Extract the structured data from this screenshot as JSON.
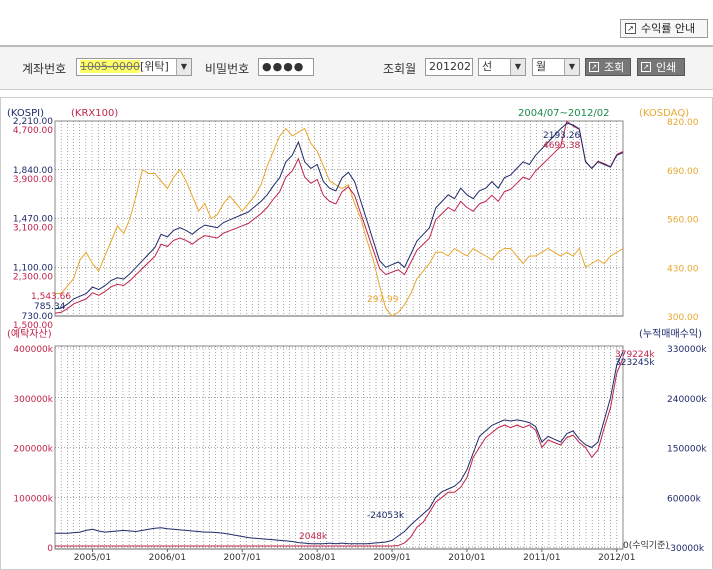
{
  "header": {
    "guide_button": "수익률 안내"
  },
  "query": {
    "account_label": "계좌번호",
    "account_value": "1005-0000",
    "account_type": "[위탁]",
    "password_label": "비밀번호",
    "password_value": "●●●●",
    "period_label": "조회월",
    "period_value": "201202",
    "option1": "선",
    "option2": "월",
    "search_button": "조회",
    "print_button": "인쇄"
  },
  "chart_data": [
    {
      "type": "line",
      "period_label": "2004/07~2012/02",
      "legend": {
        "kospi": "(KOSPI)",
        "krx100": "(KRX100)",
        "kosdaq": "(KOSDAQ)"
      },
      "colors": {
        "kospi": "#1f2a6b",
        "krx100": "#c0254a",
        "kosdaq": "#e8a830",
        "period": "#1a8a4a"
      },
      "kospi_axis": {
        "ticks": [
          "2,210.00",
          "1,840.00",
          "1,470.00",
          "1,100.00",
          "730.00"
        ],
        "range": [
          730,
          2210
        ]
      },
      "krx100_axis": {
        "ticks": [
          "4,700.00",
          "3,900.00",
          "3,100.00",
          "2,300.00",
          "1,500.00"
        ],
        "range": [
          1500,
          4700
        ]
      },
      "kosdaq_axis": {
        "ticks": [
          "820.00",
          "690.00",
          "560.00",
          "430.00",
          "300.00"
        ],
        "range": [
          300,
          820
        ]
      },
      "annotations": {
        "kospi_start": "785.34",
        "krx100_start": "1,543.66",
        "kospi_end": "2193.26",
        "krx100_end": "4695.38",
        "kosdaq_low": "297.99"
      },
      "kospi": [
        785,
        790,
        820,
        860,
        880,
        900,
        950,
        930,
        960,
        1000,
        1020,
        1010,
        1050,
        1100,
        1150,
        1200,
        1250,
        1350,
        1330,
        1380,
        1400,
        1380,
        1350,
        1390,
        1420,
        1410,
        1400,
        1440,
        1460,
        1480,
        1500,
        1520,
        1560,
        1600,
        1650,
        1720,
        1780,
        1900,
        1950,
        2050,
        1900,
        1850,
        1880,
        1750,
        1700,
        1680,
        1780,
        1820,
        1750,
        1600,
        1450,
        1300,
        1150,
        1100,
        1120,
        1140,
        1100,
        1200,
        1300,
        1350,
        1400,
        1550,
        1600,
        1650,
        1620,
        1700,
        1650,
        1620,
        1680,
        1700,
        1750,
        1700,
        1780,
        1800,
        1850,
        1900,
        1880,
        1950,
        2000,
        2050,
        2100,
        2150,
        2193,
        2180,
        2150,
        1900,
        1850,
        1900,
        1880,
        1860,
        1950,
        1970
      ],
      "krx100": [
        1544,
        1560,
        1620,
        1700,
        1740,
        1780,
        1880,
        1840,
        1900,
        1980,
        2020,
        2000,
        2080,
        2180,
        2280,
        2380,
        2480,
        2680,
        2640,
        2740,
        2780,
        2740,
        2680,
        2760,
        2820,
        2800,
        2780,
        2860,
        2900,
        2940,
        2980,
        3020,
        3100,
        3180,
        3280,
        3420,
        3540,
        3780,
        3880,
        4080,
        3780,
        3680,
        3740,
        3480,
        3380,
        3340,
        3540,
        3620,
        3480,
        3180,
        2880,
        2580,
        2280,
        2180,
        2220,
        2260,
        2180,
        2380,
        2580,
        2680,
        2780,
        3080,
        3180,
        3280,
        3220,
        3380,
        3280,
        3220,
        3340,
        3380,
        3480,
        3380,
        3540,
        3580,
        3680,
        3780,
        3740,
        3880,
        3980,
        4080,
        4180,
        4280,
        4695,
        4620,
        4560,
        4040,
        3920,
        4040,
        4000,
        3950,
        4150,
        4200
      ],
      "kosdaq": [
        360,
        360,
        380,
        400,
        450,
        470,
        440,
        420,
        460,
        500,
        540,
        520,
        560,
        620,
        690,
        680,
        680,
        660,
        640,
        670,
        690,
        660,
        620,
        580,
        600,
        560,
        570,
        600,
        620,
        600,
        580,
        600,
        620,
        650,
        700,
        740,
        780,
        800,
        780,
        790,
        800,
        760,
        740,
        700,
        660,
        650,
        640,
        650,
        600,
        560,
        500,
        450,
        380,
        320,
        298,
        310,
        330,
        360,
        400,
        420,
        440,
        470,
        470,
        460,
        480,
        470,
        460,
        480,
        470,
        460,
        450,
        470,
        480,
        480,
        460,
        440,
        460,
        460,
        470,
        480,
        470,
        460,
        470,
        460,
        480,
        430,
        440,
        450,
        440,
        460,
        470,
        480
      ]
    },
    {
      "type": "line",
      "legend": {
        "assets": "(예탁자산)",
        "profit": "(누적매매수익)"
      },
      "colors": {
        "assets": "#c0254a",
        "profit": "#1f2a6b"
      },
      "left_axis": {
        "ticks": [
          "400000k",
          "300000k",
          "200000k",
          "100000k",
          "0"
        ],
        "range": [
          0,
          400000
        ]
      },
      "right_axis": {
        "ticks": [
          "330000k",
          "240000k",
          "150000k",
          "60000k",
          "-30000k"
        ],
        "range": [
          -30000,
          330000
        ]
      },
      "categories": [
        "2005/01",
        "2006/01",
        "2007/01",
        "2008/01",
        "2009/01",
        "2010/01",
        "2011/01",
        "2012/01"
      ],
      "annotations": {
        "assets_end": "379224k",
        "profit_end": "323245k",
        "assets_mid": "2048k",
        "profit_mid": "-24053k",
        "zero_label": "0(수익기준)"
      },
      "assets": [
        2000,
        2000,
        2000,
        2000,
        2000,
        2000,
        2000,
        2000,
        2000,
        2000,
        2000,
        2000,
        2000,
        2000,
        2000,
        2000,
        2000,
        2000,
        2000,
        2000,
        2000,
        2000,
        2000,
        2000,
        2000,
        2000,
        2000,
        2000,
        2000,
        2000,
        2000,
        2000,
        2000,
        2000,
        2000,
        2000,
        2000,
        2000,
        2000,
        2000,
        2000,
        2000,
        2000,
        2000,
        2000,
        2000,
        2000,
        2048,
        2000,
        2000,
        2000,
        2000,
        2000,
        2000,
        2000,
        3000,
        8000,
        20000,
        40000,
        50000,
        70000,
        90000,
        100000,
        110000,
        110000,
        120000,
        140000,
        180000,
        200000,
        220000,
        230000,
        240000,
        245000,
        240000,
        245000,
        240000,
        245000,
        235000,
        200000,
        215000,
        210000,
        205000,
        220000,
        225000,
        210000,
        200000,
        180000,
        195000,
        240000,
        280000,
        350000,
        379224
      ],
      "profit": [
        -5000,
        -5000,
        -5000,
        -4000,
        -3000,
        0,
        2000,
        -1000,
        -3000,
        -2000,
        -1000,
        0,
        -1000,
        -2000,
        0,
        2000,
        4000,
        5000,
        3000,
        2000,
        1000,
        0,
        -1000,
        -2000,
        -3000,
        -3000,
        -4000,
        -5000,
        -7000,
        -9000,
        -11000,
        -13000,
        -14000,
        -15000,
        -16000,
        -17000,
        -18000,
        -19000,
        -20000,
        -22000,
        -23000,
        -24000,
        -24053,
        -24000,
        -23000,
        -24000,
        -23000,
        -24000,
        -24000,
        -24000,
        -24000,
        -23000,
        -22000,
        -21000,
        -18000,
        -10000,
        -2000,
        10000,
        20000,
        30000,
        40000,
        60000,
        70000,
        75000,
        80000,
        90000,
        110000,
        140000,
        170000,
        180000,
        190000,
        195000,
        200000,
        198000,
        200000,
        198000,
        195000,
        188000,
        160000,
        170000,
        165000,
        160000,
        175000,
        180000,
        165000,
        155000,
        150000,
        160000,
        200000,
        240000,
        300000,
        323245
      ]
    }
  ]
}
